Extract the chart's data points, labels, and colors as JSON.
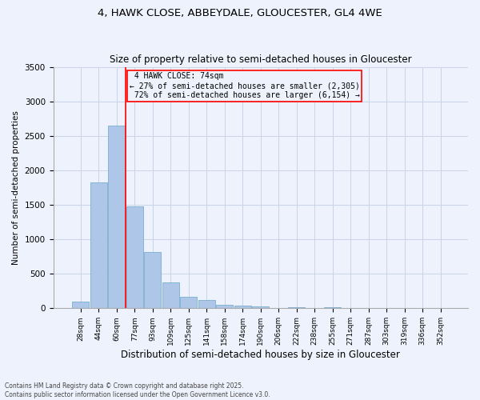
{
  "title_line1": "4, HAWK CLOSE, ABBEYDALE, GLOUCESTER, GL4 4WE",
  "title_line2": "Size of property relative to semi-detached houses in Gloucester",
  "xlabel": "Distribution of semi-detached houses by size in Gloucester",
  "ylabel": "Number of semi-detached properties",
  "categories": [
    "28sqm",
    "44sqm",
    "60sqm",
    "77sqm",
    "93sqm",
    "109sqm",
    "125sqm",
    "141sqm",
    "158sqm",
    "174sqm",
    "190sqm",
    "206sqm",
    "222sqm",
    "238sqm",
    "255sqm",
    "271sqm",
    "287sqm",
    "303sqm",
    "319sqm",
    "336sqm",
    "352sqm"
  ],
  "values": [
    95,
    1830,
    2650,
    1480,
    820,
    380,
    170,
    120,
    55,
    40,
    30,
    0,
    15,
    0,
    20,
    0,
    0,
    0,
    0,
    0,
    0
  ],
  "bar_color": "#aec6e8",
  "bar_edge_color": "#7aaed0",
  "grid_color": "#c8d4e8",
  "bg_color": "#eef2fc",
  "vline_color": "red",
  "property_label": "4 HAWK CLOSE: 74sqm",
  "pct_smaller": 27,
  "count_smaller": 2305,
  "pct_larger": 72,
  "count_larger": 6154,
  "annotation_box_color": "red",
  "ylim": [
    0,
    3500
  ],
  "yticks": [
    0,
    500,
    1000,
    1500,
    2000,
    2500,
    3000,
    3500
  ],
  "footnote1": "Contains HM Land Registry data © Crown copyright and database right 2025.",
  "footnote2": "Contains public sector information licensed under the Open Government Licence v3.0."
}
